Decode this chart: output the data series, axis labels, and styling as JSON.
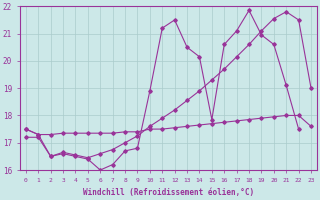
{
  "background_color": "#cce8e8",
  "line_color": "#993399",
  "grid_color": "#aacccc",
  "xlabel": "Windchill (Refroidissement éolien,°C)",
  "xlim": [
    -0.5,
    23.5
  ],
  "ylim": [
    16,
    22
  ],
  "yticks": [
    16,
    17,
    18,
    19,
    20,
    21,
    22
  ],
  "xticks": [
    0,
    1,
    2,
    3,
    4,
    5,
    6,
    7,
    8,
    9,
    10,
    11,
    12,
    13,
    14,
    15,
    16,
    17,
    18,
    19,
    20,
    21,
    22,
    23
  ],
  "series": [
    {
      "x": [
        0,
        1,
        2,
        3,
        4,
        5,
        6,
        7,
        8,
        9,
        10,
        11,
        12,
        13,
        14,
        15,
        16,
        17,
        18,
        19,
        20,
        21,
        22
      ],
      "y": [
        17.5,
        17.3,
        16.5,
        16.6,
        16.5,
        16.4,
        16.0,
        16.2,
        16.7,
        16.8,
        18.9,
        21.2,
        21.5,
        20.5,
        20.15,
        17.85,
        20.6,
        21.1,
        21.85,
        20.95,
        20.6,
        19.1,
        17.5
      ]
    },
    {
      "x": [
        0,
        1,
        2,
        3,
        4,
        5,
        6,
        7,
        8,
        9,
        10,
        11,
        12,
        13,
        14,
        15,
        16,
        17,
        18,
        19,
        20,
        21,
        22,
        23
      ],
      "y": [
        17.5,
        17.3,
        17.3,
        17.35,
        17.35,
        17.35,
        17.35,
        17.35,
        17.4,
        17.4,
        17.5,
        17.5,
        17.55,
        17.6,
        17.65,
        17.7,
        17.75,
        17.8,
        17.85,
        17.9,
        17.95,
        18.0,
        18.0,
        17.6
      ]
    },
    {
      "x": [
        0,
        1,
        2,
        3,
        4,
        5,
        6,
        7,
        8,
        9,
        10,
        11,
        12,
        13,
        14,
        15,
        16,
        17,
        18,
        19,
        20,
        21,
        22,
        23
      ],
      "y": [
        17.2,
        17.2,
        16.5,
        16.65,
        16.55,
        16.45,
        16.6,
        16.75,
        17.0,
        17.25,
        17.6,
        17.9,
        18.2,
        18.55,
        18.9,
        19.3,
        19.7,
        20.15,
        20.6,
        21.1,
        21.55,
        21.8,
        21.5,
        19.0
      ]
    }
  ]
}
